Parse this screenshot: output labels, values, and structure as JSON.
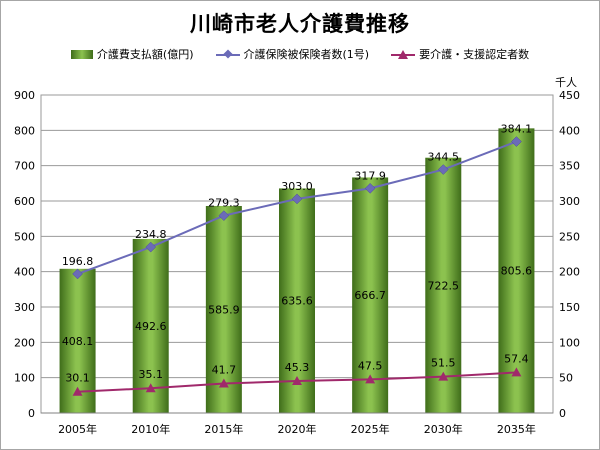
{
  "title": "川崎市老人介護費推移",
  "legend": {
    "bars": "介護費支払額(億円)",
    "care_insured": "介護保険被保険者数(1号)",
    "care_needed": "要介護・支援認定者数"
  },
  "y2_unit": "千人",
  "colors": {
    "bar_dark": "#3f6d1a",
    "bar_light": "#8cc24f",
    "care_insured": "#6b6bb8",
    "care_needed": "#a0296b"
  },
  "chart_data": {
    "type": "bar",
    "title": "川崎市老人介護費推移",
    "xlabel": "",
    "ylabel": "",
    "categories": [
      "2005年",
      "2010年",
      "2015年",
      "2020年",
      "2025年",
      "2030年",
      "2035年"
    ],
    "ylim": [
      0,
      900
    ],
    "y_ticks": [
      0,
      100,
      200,
      300,
      400,
      500,
      600,
      700,
      800,
      900
    ],
    "y2lim": [
      0,
      450
    ],
    "y2_ticks": [
      0,
      50,
      100,
      150,
      200,
      250,
      300,
      350,
      400,
      450
    ],
    "grid": true,
    "legend_position": "top",
    "series": [
      {
        "name": "介護費支払額(億円)",
        "type": "bar",
        "axis": "left",
        "values": [
          408.1,
          492.6,
          585.9,
          635.6,
          666.7,
          722.5,
          805.6
        ],
        "labels": [
          "408.1",
          "492.6",
          "585.9",
          "635.6",
          "666.7",
          "722.5",
          "805.6"
        ]
      },
      {
        "name": "介護保険被保険者数(1号)",
        "type": "line",
        "axis": "right",
        "values": [
          196.8,
          234.8,
          279.3,
          303.0,
          317.9,
          344.5,
          384.1
        ],
        "labels": [
          "196.8",
          "234.8",
          "279.3",
          "303.0",
          "317.9",
          "344.5",
          "384.1"
        ]
      },
      {
        "name": "要介護・支援認定者数",
        "type": "line",
        "axis": "right",
        "values": [
          30.1,
          35.1,
          41.7,
          45.3,
          47.5,
          51.5,
          57.4
        ],
        "labels": [
          "30.1",
          "35.1",
          "41.7",
          "45.3",
          "47.5",
          "51.5",
          "57.4"
        ]
      }
    ]
  }
}
